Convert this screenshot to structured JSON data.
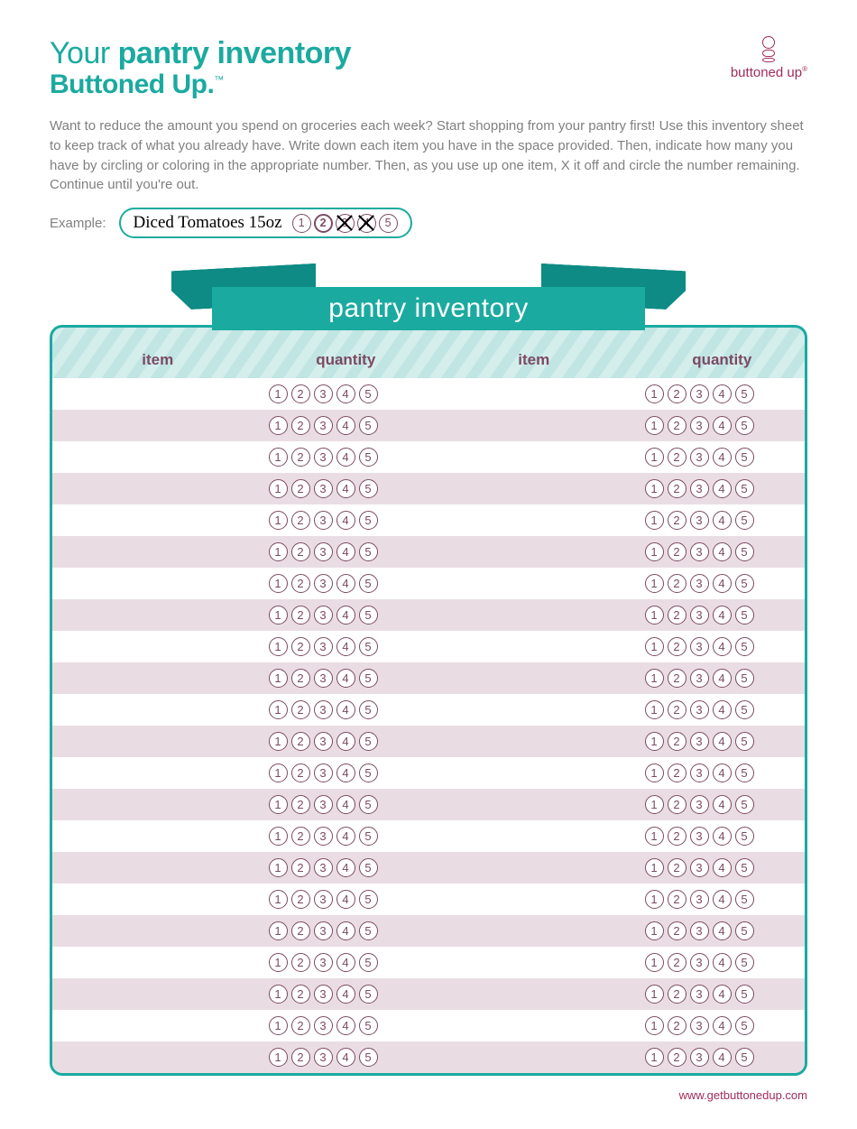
{
  "colors": {
    "teal": "#1baaa0",
    "teal_dark": "#0d8b84",
    "magenta": "#a02c5a",
    "plum": "#7b4a63",
    "grey_text": "#808080",
    "row_white": "#ffffff",
    "row_shade": "#e9dde3",
    "header_stripe_a": "#d4eeec",
    "header_stripe_b": "#c0e5e2"
  },
  "header": {
    "title_prefix": "Your ",
    "title_bold": "pantry inventory",
    "subtitle": "Buttoned Up.",
    "tm": "™",
    "logo_text": "buttoned up",
    "logo_mark": "®"
  },
  "intro": "Want to reduce the amount you spend on groceries each week? Start shopping from your pantry first! Use this inventory sheet to keep track of what you already have. Write down each item you have in the space provided. Then, indicate how many you have by circling or coloring in the appropriate number. Then, as you use up one item, X it off and circle the number remaining. Continue until you're out.",
  "example": {
    "label": "Example:",
    "item": "Diced Tomatoes 15oz",
    "circles": [
      {
        "n": "1",
        "state": "plain"
      },
      {
        "n": "2",
        "state": "bold"
      },
      {
        "n": "3",
        "state": "crossed"
      },
      {
        "n": "4",
        "state": "crossed"
      },
      {
        "n": "5",
        "state": "plain"
      }
    ]
  },
  "banner": "pantry inventory",
  "columns": {
    "item": "item",
    "quantity": "quantity"
  },
  "quantity_numbers": [
    "1",
    "2",
    "3",
    "4",
    "5"
  ],
  "row_count": 22,
  "column_count": 2,
  "footer_url": "www.getbuttonedup.com"
}
